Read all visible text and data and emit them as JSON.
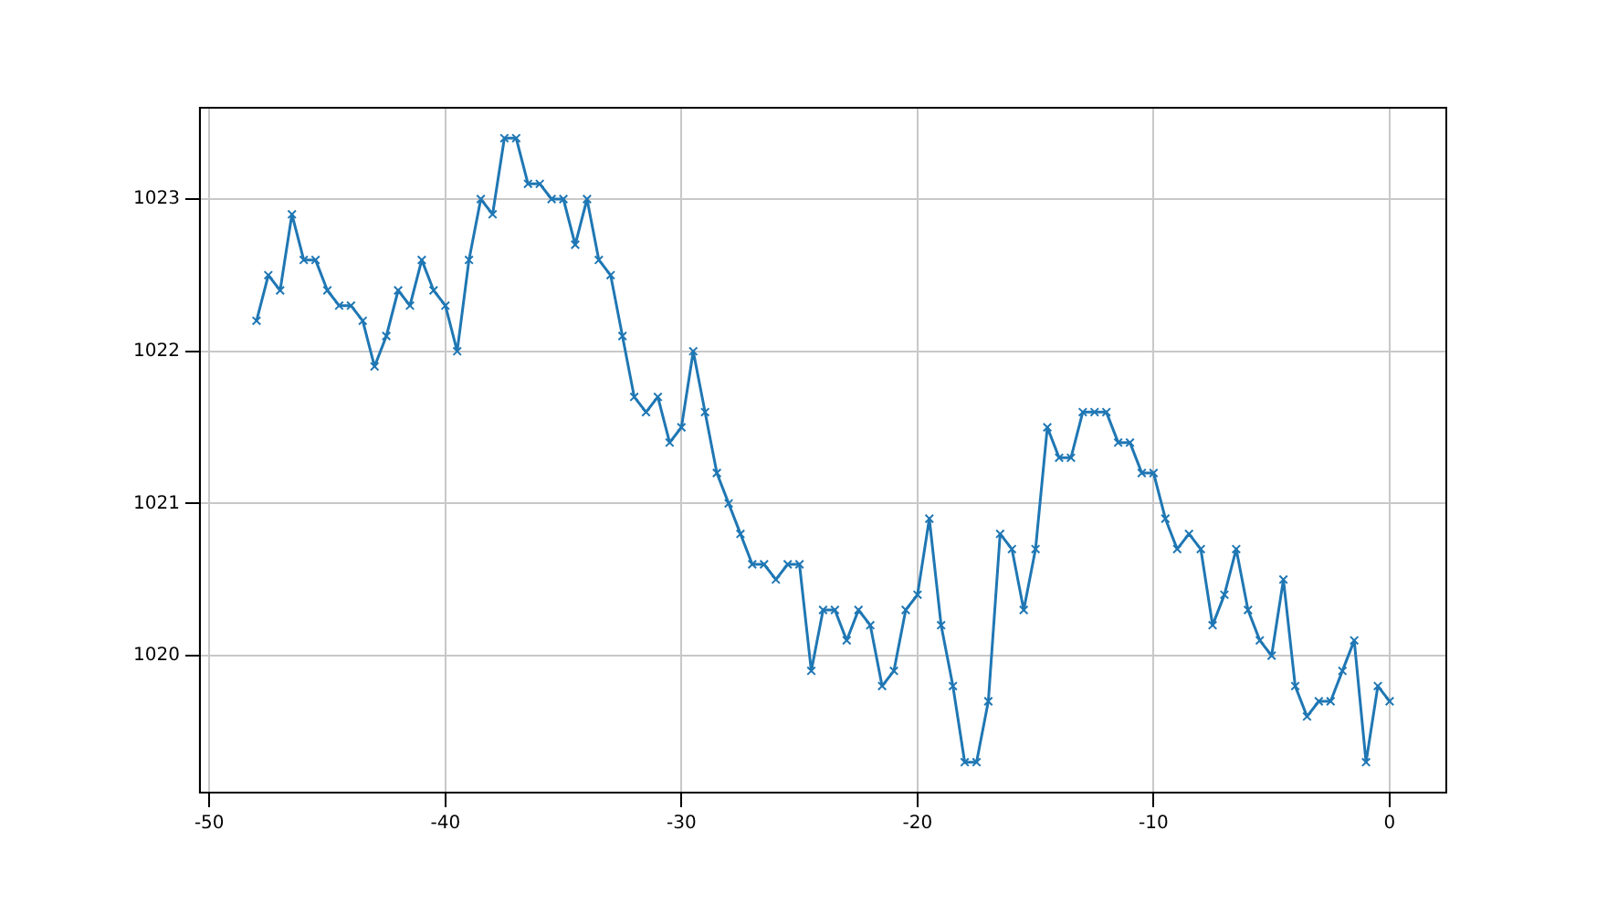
{
  "chart_data": {
    "type": "line",
    "x": [
      -48,
      -47.5,
      -47,
      -46.5,
      -46,
      -45.5,
      -45,
      -44.5,
      -44,
      -43.5,
      -43,
      -42.5,
      -42,
      -41.5,
      -41,
      -40.5,
      -40,
      -39.5,
      -39,
      -38.5,
      -38,
      -37.5,
      -37,
      -36.5,
      -36,
      -35.5,
      -35,
      -34.5,
      -34,
      -33.5,
      -33,
      -32.5,
      -32,
      -31.5,
      -31,
      -30.5,
      -30,
      -29.5,
      -29,
      -28.5,
      -28,
      -27.5,
      -27,
      -26.5,
      -26,
      -25.5,
      -25,
      -24.5,
      -24,
      -23.5,
      -23,
      -22.5,
      -22,
      -21.5,
      -21,
      -20.5,
      -20,
      -19.5,
      -19,
      -18.5,
      -18,
      -17.5,
      -17,
      -16.5,
      -16,
      -15.5,
      -15,
      -14.5,
      -14,
      -13.5,
      -13,
      -12.5,
      -12,
      -11.5,
      -11,
      -10.5,
      -10,
      -9.5,
      -9,
      -8.5,
      -8,
      -7.5,
      -7,
      -6.5,
      -6,
      -5.5,
      -5,
      -4.5,
      -4,
      -3.5,
      -3,
      -2.5,
      -2,
      -1.5,
      -1,
      -0.5,
      0
    ],
    "series": [
      {
        "color": "#1f77b4",
        "values": [
          1022.2,
          1022.5,
          1022.4,
          1022.9,
          1022.6,
          1022.6,
          1022.4,
          1022.3,
          1022.3,
          1022.2,
          1021.9,
          1022.1,
          1022.4,
          1022.3,
          1022.6,
          1022.4,
          1022.3,
          1022.0,
          1022.6,
          1023.0,
          1022.9,
          1023.4,
          1023.4,
          1023.1,
          1023.1,
          1023.0,
          1023.0,
          1022.7,
          1023.0,
          1022.6,
          1022.5,
          1022.1,
          1021.7,
          1021.6,
          1021.7,
          1021.4,
          1021.5,
          1022.0,
          1021.6,
          1021.2,
          1021.0,
          1020.8,
          1020.6,
          1020.6,
          1020.5,
          1020.6,
          1020.6,
          1019.9,
          1020.3,
          1020.3,
          1020.1,
          1020.3,
          1020.2,
          1019.8,
          1019.9,
          1020.3,
          1020.4,
          1020.9,
          1020.2,
          1019.8,
          1019.3,
          1019.3,
          1019.7,
          1020.8,
          1020.7,
          1020.3,
          1020.7,
          1021.5,
          1021.3,
          1021.3,
          1021.6,
          1021.6,
          1021.6,
          1021.4,
          1021.4,
          1021.2,
          1021.2,
          1020.9,
          1020.7,
          1020.8,
          1020.7,
          1020.2,
          1020.4,
          1020.7,
          1020.3,
          1020.1,
          1020.0,
          1020.5,
          1019.8,
          1019.6,
          1019.7,
          1019.7,
          1019.9,
          1020.1,
          1019.3,
          1019.8,
          1019.7
        ]
      }
    ],
    "xlim": [
      -50.4,
      2.4
    ],
    "ylim": [
      1019.1,
      1023.6
    ],
    "xticks": [
      -50,
      -40,
      -30,
      -20,
      -10,
      0
    ],
    "yticks": [
      1020,
      1021,
      1022,
      1023
    ],
    "grid": true,
    "marker": "cross",
    "line_style": "solid"
  }
}
